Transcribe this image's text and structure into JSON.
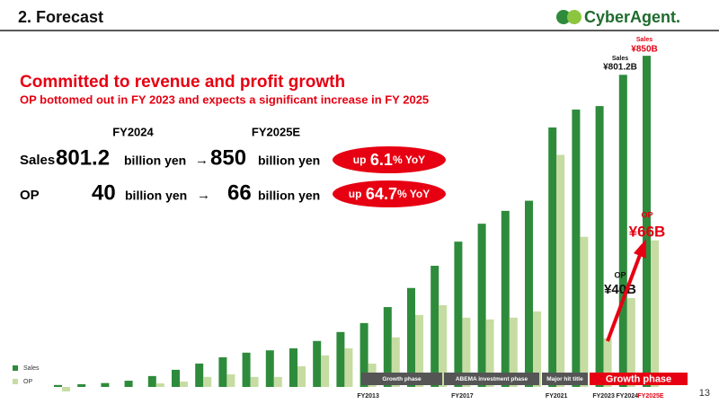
{
  "header": {
    "title": "2.  Forecast",
    "logo": "CyberAgent."
  },
  "headline": "Committed to revenue and profit growth",
  "subheadline": "OP bottomed out in FY 2023 and expects a significant increase in FY 2025",
  "summary": {
    "col1": "FY2024",
    "col2": "FY2025E",
    "rows": [
      {
        "label": "Sales",
        "from": "801.2",
        "unit1": "billion yen",
        "arrow": "→",
        "to": "850",
        "unit2": "billion yen",
        "pill": {
          "prefix": "up",
          "value": "6.1",
          "suffix": "% YoY"
        }
      },
      {
        "label": "OP",
        "from": "40",
        "unit1": "billion yen",
        "arrow": "→",
        "to": "66",
        "unit2": "billion yen",
        "pill": {
          "prefix": "up",
          "value": "64.7",
          "suffix": "% YoY"
        }
      }
    ]
  },
  "page_number": "13",
  "chart_data": {
    "type": "bar",
    "categories": [
      null,
      null,
      null,
      null,
      null,
      null,
      null,
      null,
      null,
      null,
      null,
      null,
      null,
      "FY2013",
      null,
      null,
      null,
      "FY2017",
      null,
      null,
      null,
      "FY2021",
      null,
      "FY2023",
      "FY2024",
      "FY2025E"
    ],
    "series": [
      {
        "name": "Sales",
        "color": "#2e8b3c",
        "values": [
          5,
          7,
          10,
          16,
          28,
          44,
          60,
          76,
          88,
          94,
          99,
          118,
          141,
          164,
          205,
          254,
          311,
          373,
          419,
          452,
          478,
          666,
          712,
          721,
          801.2,
          850
        ],
        "value_labels": [
          null,
          null,
          null,
          null,
          null,
          null,
          null,
          null,
          null,
          null,
          null,
          null,
          null,
          null,
          null,
          null,
          null,
          null,
          null,
          null,
          null,
          null,
          null,
          null,
          "¥801.2B",
          "¥850B"
        ]
      },
      {
        "name": "OP",
        "color": "#c6dca2",
        "axis": "y2",
        "values": [
          -2,
          0,
          0,
          0,
          1.6,
          2.4,
          4.5,
          5.7,
          4.5,
          4.5,
          9.3,
          14.2,
          17.4,
          10.5,
          22.3,
          32.4,
          36.8,
          31.2,
          30.4,
          31.2,
          34,
          104.5,
          67.6,
          21.9,
          40,
          66
        ],
        "value_labels": [
          null,
          null,
          null,
          null,
          null,
          null,
          null,
          null,
          null,
          null,
          null,
          null,
          null,
          null,
          null,
          null,
          null,
          null,
          null,
          null,
          null,
          null,
          null,
          null,
          "¥40B",
          "¥66B"
        ]
      }
    ],
    "ylim": [
      0,
      878
    ],
    "y2lim": [
      0,
      154
    ],
    "annotations": [
      {
        "text": "Sales"
      },
      {
        "text": "Sales"
      },
      {
        "text": "OP"
      },
      {
        "text": "OP"
      }
    ],
    "phases": [
      {
        "label": "Growth phase",
        "color": "#555555"
      },
      {
        "label": "ABEMA investment phase",
        "color": "#555555"
      },
      {
        "label": "Major hit title",
        "color": "#555555"
      },
      {
        "label": "Growth phase",
        "color": "#e60012"
      }
    ],
    "legend": "bottom-left"
  }
}
